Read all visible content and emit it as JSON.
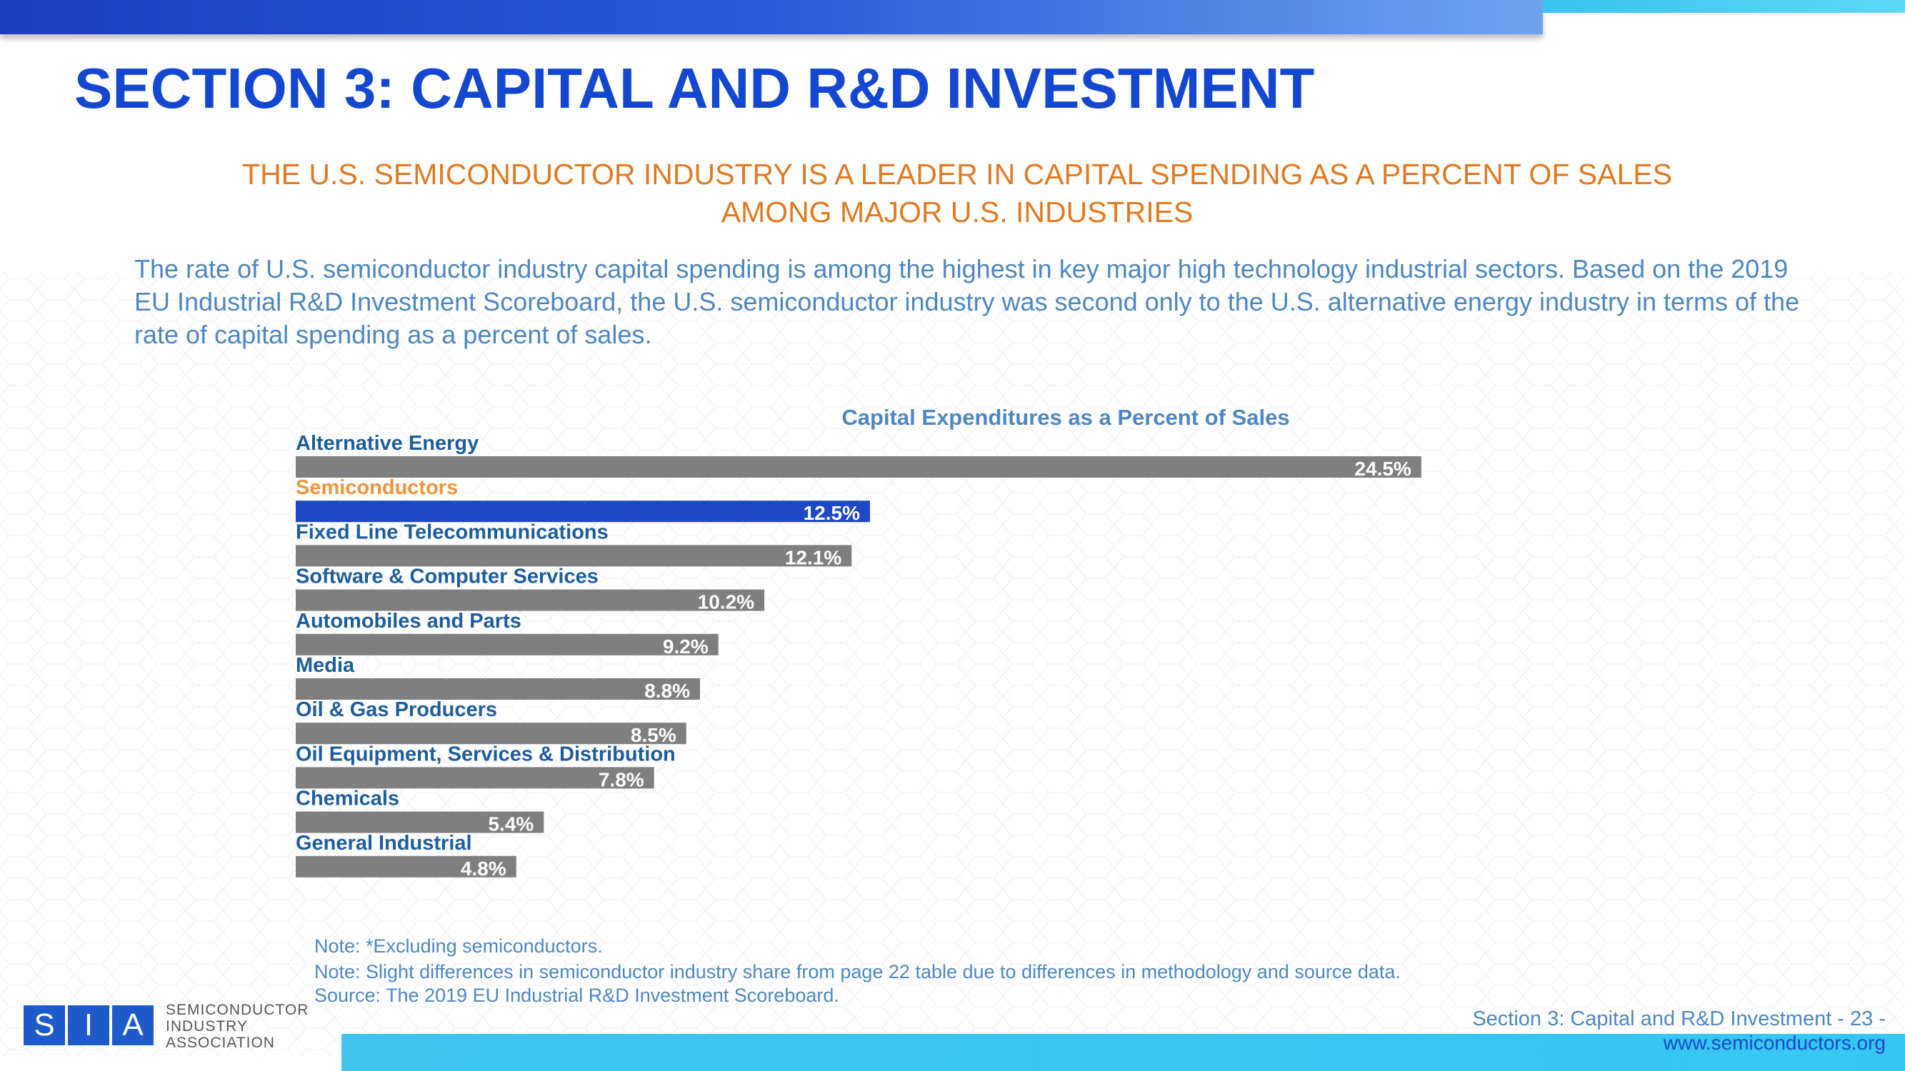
{
  "header": {
    "title": "SECTION 3: CAPITAL AND R&D INVESTMENT",
    "subtitle_line1": "THE U.S. SEMICONDUCTOR INDUSTRY IS A LEADER IN CAPITAL SPENDING AS A PERCENT OF SALES",
    "subtitle_line2": "AMONG MAJOR U.S. INDUSTRIES"
  },
  "body_text": "The rate of U.S. semiconductor industry capital spending is among the highest in key major high technology industrial sectors. Based on the 2019 EU Industrial R&D Investment Scoreboard, the U.S. semiconductor industry was second only to the U.S. alternative energy industry in terms of the rate of capital spending as a percent of sales.",
  "colors": {
    "bar_default": "#7f7f7f",
    "bar_highlight": "#1f48c4",
    "label_default": "#1d5d9b",
    "label_highlight": "#f0943e",
    "title": "#1447cf",
    "chart_title": "#4d87bf"
  },
  "chart_data": {
    "type": "bar",
    "orientation": "horizontal",
    "title": "Capital Expenditures as a Percent of Sales",
    "categories": [
      "Alternative Energy",
      "Semiconductors",
      "Fixed Line Telecommunications",
      "Software & Computer Services",
      "Automobiles and Parts",
      "Media",
      "Oil & Gas Producers",
      "Oil Equipment, Services & Distribution",
      "Chemicals",
      "General Industrial"
    ],
    "values": [
      24.5,
      12.5,
      12.1,
      10.2,
      9.2,
      8.8,
      8.5,
      7.8,
      5.4,
      4.8
    ],
    "value_labels": [
      "24.5%",
      "12.5%",
      "12.1%",
      "10.2%",
      "9.2%",
      "8.8%",
      "8.5%",
      "7.8%",
      "5.4%",
      "4.8%"
    ],
    "highlight_index": 1,
    "xlim": [
      0,
      25
    ],
    "unit": "%",
    "grid": false
  },
  "notes": {
    "note1": "Note: *Excluding semiconductors.",
    "note2": "Note: Slight differences in semiconductor industry share from page 22 table due to differences in methodology and source data.",
    "source": "Source: The 2019 EU Industrial R&D Investment Scoreboard."
  },
  "footer": {
    "section_label": "Section 3: Capital and R&D Investment  - 23 -",
    "url": "www.semiconductors.org",
    "logo_letters": [
      "S",
      "I",
      "A"
    ],
    "logo_line1": "SEMICONDUCTOR",
    "logo_line2": "INDUSTRY",
    "logo_line3": "ASSOCIATION"
  }
}
